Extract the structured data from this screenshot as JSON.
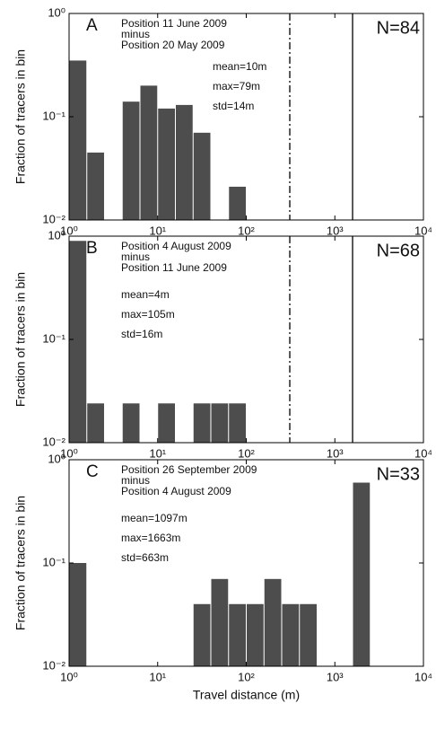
{
  "chart_data": [
    {
      "type": "histogram",
      "panel_label": "A",
      "n_label": "N=84",
      "annotations": [
        "Position 11 June 2009",
        "minus",
        "Position 20 May 2009"
      ],
      "stats": [
        "mean=10m",
        "max=79m",
        "std=14m"
      ],
      "y_label": "Fraction of tracers in bin",
      "log_x": true,
      "log_y": true,
      "color": "#4d4d4d",
      "bins": [
        1,
        1.585,
        2.512,
        3.981,
        6.31,
        10,
        15.85,
        25.12,
        39.81,
        63.1,
        100,
        158.5,
        251.2,
        398.1,
        631,
        1000,
        1585,
        2512
      ],
      "values": [
        0.35,
        0.045,
        0,
        0.14,
        0.2,
        0.12,
        0.13,
        0.07,
        0,
        0.021,
        0,
        0,
        0,
        0,
        0,
        0,
        0
      ],
      "vlines": [
        {
          "value": 310,
          "style": "dashdot"
        },
        {
          "value": 1585,
          "style": "solid"
        }
      ],
      "xlim": [
        1,
        10000
      ],
      "ylim": [
        0.01,
        1
      ],
      "xticks": [
        {
          "value": 1,
          "label": "10⁰"
        },
        {
          "value": 10,
          "label": "10¹"
        },
        {
          "value": 100,
          "label": "10²"
        },
        {
          "value": 1000,
          "label": "10³"
        },
        {
          "value": 10000,
          "label": "10⁴"
        }
      ],
      "yticks": [
        {
          "value": 0.01,
          "label": "10⁻²"
        },
        {
          "value": 0.1,
          "label": "10⁻¹"
        },
        {
          "value": 1,
          "label": "10⁰"
        }
      ]
    },
    {
      "type": "histogram",
      "panel_label": "B",
      "n_label": "N=68",
      "annotations": [
        "Position 4 August 2009",
        "minus",
        "Position 11 June 2009"
      ],
      "stats": [
        "mean=4m",
        "max=105m",
        "std=16m"
      ],
      "y_label": "Fraction of tracers in bin",
      "log_x": true,
      "log_y": true,
      "color": "#4d4d4d",
      "bins": [
        1,
        1.585,
        2.512,
        3.981,
        6.31,
        10,
        15.85,
        25.12,
        39.81,
        63.1,
        100,
        158.5,
        251.2,
        398.1,
        631,
        1000,
        1585,
        2512
      ],
      "values": [
        0.9,
        0.024,
        0,
        0.024,
        0,
        0.024,
        0,
        0.024,
        0.024,
        0.024,
        0,
        0,
        0,
        0,
        0,
        0,
        0
      ],
      "vlines": [
        {
          "value": 310,
          "style": "dashdot"
        },
        {
          "value": 1585,
          "style": "solid"
        }
      ],
      "xlim": [
        1,
        10000
      ],
      "ylim": [
        0.01,
        1
      ],
      "xticks": [
        {
          "value": 1,
          "label": "10⁰"
        },
        {
          "value": 10,
          "label": "10¹"
        },
        {
          "value": 100,
          "label": "10²"
        },
        {
          "value": 1000,
          "label": "10³"
        },
        {
          "value": 10000,
          "label": "10⁴"
        }
      ],
      "yticks": [
        {
          "value": 0.01,
          "label": "10⁻²"
        },
        {
          "value": 0.1,
          "label": "10⁻¹"
        },
        {
          "value": 1,
          "label": "10⁰"
        }
      ]
    },
    {
      "type": "histogram",
      "panel_label": "C",
      "n_label": "N=33",
      "annotations": [
        "Position 26 September 2009",
        "minus",
        "Position 4 August 2009"
      ],
      "stats": [
        "mean=1097m",
        "max=1663m",
        "std=663m"
      ],
      "y_label": "Fraction of tracers in bin",
      "x_label": "Travel distance (m)",
      "log_x": true,
      "log_y": true,
      "color": "#4d4d4d",
      "bins": [
        1,
        1.585,
        2.512,
        3.981,
        6.31,
        10,
        15.85,
        25.12,
        39.81,
        63.1,
        100,
        158.5,
        251.2,
        398.1,
        631,
        1000,
        1585,
        2512
      ],
      "values": [
        0.1,
        0,
        0,
        0,
        0,
        0,
        0,
        0.04,
        0.07,
        0.04,
        0.04,
        0.07,
        0.04,
        0.04,
        0,
        0,
        0.6
      ],
      "xlim": [
        1,
        10000
      ],
      "ylim": [
        0.01,
        1
      ],
      "xticks": [
        {
          "value": 1,
          "label": "10⁰"
        },
        {
          "value": 10,
          "label": "10¹"
        },
        {
          "value": 100,
          "label": "10²"
        },
        {
          "value": 1000,
          "label": "10³"
        },
        {
          "value": 10000,
          "label": "10⁴"
        }
      ],
      "yticks": [
        {
          "value": 0.01,
          "label": "10⁻²"
        },
        {
          "value": 0.1,
          "label": "10⁻¹"
        },
        {
          "value": 1,
          "label": "10⁰"
        }
      ]
    }
  ]
}
